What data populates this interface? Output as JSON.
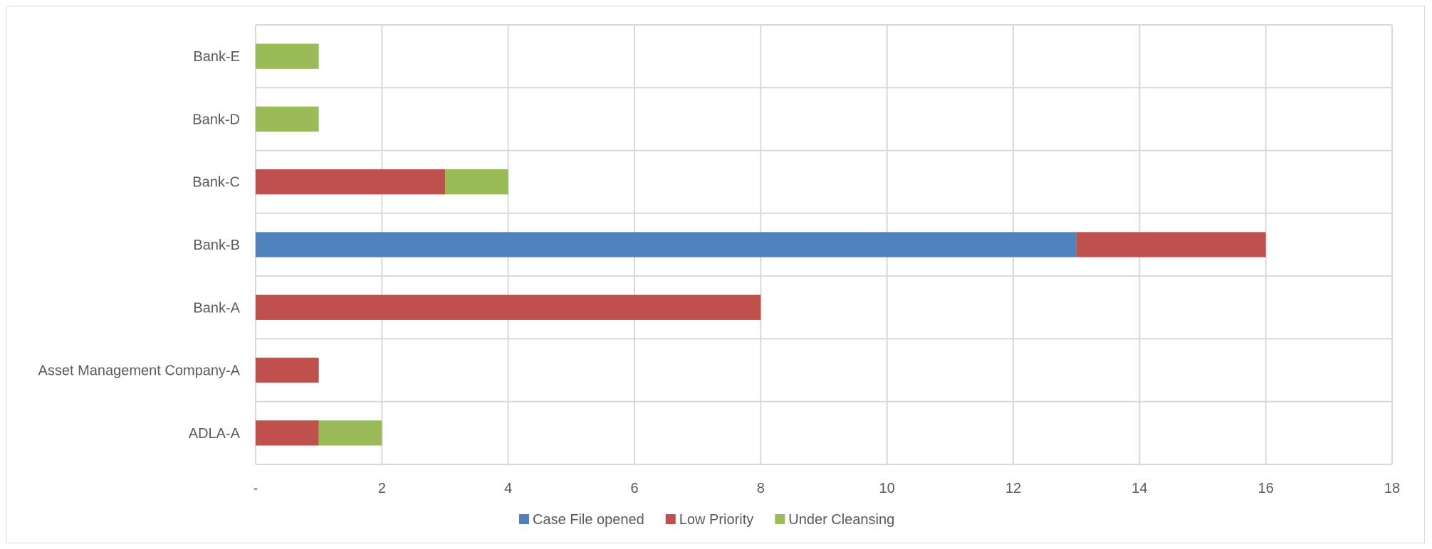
{
  "chart_data": {
    "type": "bar",
    "orientation": "horizontal",
    "stacked": true,
    "categories": [
      "ADLA-A",
      "Asset Management Company-A",
      "Bank-A",
      "Bank-B",
      "Bank-C",
      "Bank-D",
      "Bank-E"
    ],
    "series": [
      {
        "name": "Case File opened",
        "color": "#4f81bd",
        "values": [
          0,
          0,
          0,
          13,
          0,
          0,
          0
        ]
      },
      {
        "name": "Low Priority",
        "color": "#c0504d",
        "values": [
          1,
          1,
          8,
          3,
          3,
          0,
          0
        ]
      },
      {
        "name": "Under Cleansing",
        "color": "#9bbb59",
        "values": [
          1,
          0,
          0,
          0,
          1,
          1,
          1
        ]
      }
    ],
    "xlim": [
      0,
      18
    ],
    "x_ticks": [
      0,
      2,
      4,
      6,
      8,
      10,
      12,
      14,
      16,
      18
    ],
    "x_tick_labels": [
      "-",
      "2",
      "4",
      "6",
      "8",
      "10",
      "12",
      "14",
      "16",
      "18"
    ],
    "grid": true,
    "legend_position": "bottom"
  }
}
